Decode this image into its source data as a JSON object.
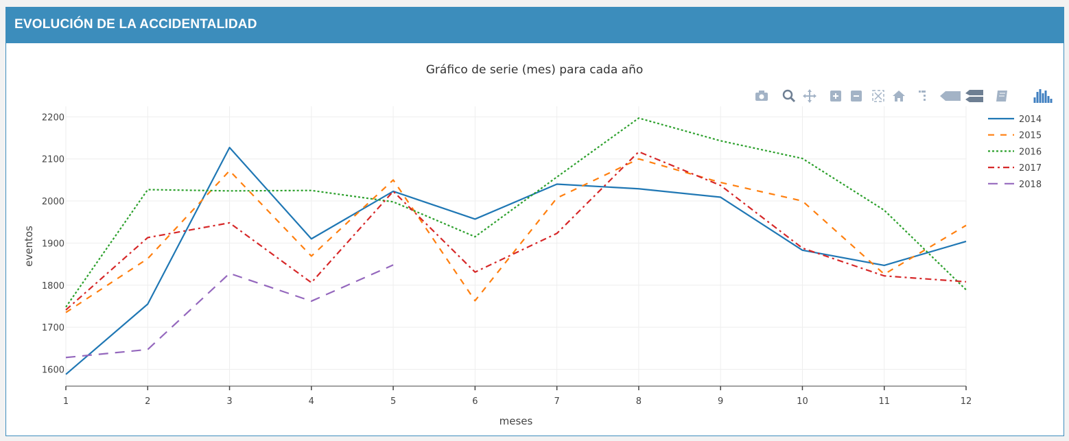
{
  "panel": {
    "title": "EVOLUCIÓN DE LA ACCIDENTALIDAD"
  },
  "modebar": {
    "buttons": [
      {
        "name": "camera-icon"
      },
      {
        "name": "zoom-icon"
      },
      {
        "name": "pan-icon"
      },
      {
        "name": "zoom-in-icon"
      },
      {
        "name": "zoom-out-icon"
      },
      {
        "name": "autoscale-icon"
      },
      {
        "name": "home-icon"
      },
      {
        "name": "spike-lines-icon"
      },
      {
        "name": "hover-closest-icon"
      },
      {
        "name": "hover-compare-icon"
      },
      {
        "name": "edit-in-chart-studio-icon"
      },
      {
        "name": "plotly-logo-icon"
      }
    ],
    "icon_color": "#a3b3c6",
    "logo_color": "#3f7fc0"
  },
  "chart_data": {
    "type": "line",
    "title": "Gráfico de serie (mes) para cada año",
    "xlabel": "meses",
    "ylabel": "eventos",
    "x": [
      1,
      2,
      3,
      4,
      5,
      6,
      7,
      8,
      9,
      10,
      11,
      12
    ],
    "xlim": [
      1,
      12
    ],
    "ylim": [
      1560,
      2225
    ],
    "yticks": [
      1600,
      1700,
      1800,
      1900,
      2000,
      2100,
      2200
    ],
    "grid": true,
    "legend_position": "top-right",
    "series": [
      {
        "name": "2014",
        "color": "#1f77b4",
        "dash": "solid",
        "values": [
          1588,
          1755,
          2127,
          1910,
          2023,
          1957,
          2040,
          2029,
          2009,
          1883,
          1847,
          1904
        ]
      },
      {
        "name": "2015",
        "color": "#ff7f0e",
        "dash": "dash",
        "values": [
          1735,
          1863,
          2072,
          1869,
          2050,
          1763,
          2007,
          2100,
          2044,
          2000,
          1826,
          1942
        ]
      },
      {
        "name": "2016",
        "color": "#2ca02c",
        "dash": "dot",
        "values": [
          1748,
          2027,
          2024,
          2025,
          1998,
          1915,
          2057,
          2197,
          2143,
          2101,
          1978,
          1789
        ]
      },
      {
        "name": "2017",
        "color": "#d62728",
        "dash": "dashdot",
        "values": [
          1741,
          1913,
          1948,
          1806,
          2023,
          1831,
          1923,
          2117,
          2037,
          1888,
          1822,
          1808
        ]
      },
      {
        "name": "2018",
        "color": "#9467bd",
        "dash": "longdash",
        "values": [
          1628,
          1647,
          1828,
          1762,
          1848,
          null,
          null,
          null,
          null,
          null,
          null,
          null
        ]
      }
    ]
  }
}
